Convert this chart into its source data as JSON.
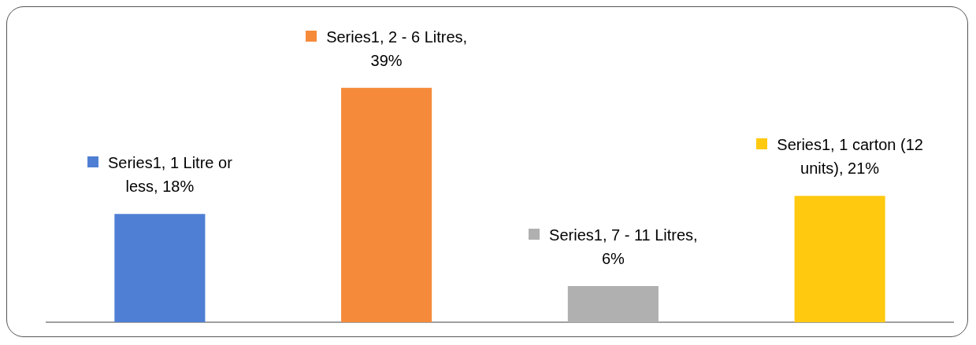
{
  "chart_data": {
    "type": "bar",
    "categories": [
      null,
      null,
      null,
      null
    ],
    "values": [
      18,
      39,
      6,
      21
    ],
    "colors": [
      "#4f7fd4",
      "#f58a3a",
      "#b0b0b0",
      "#ffc90f"
    ],
    "value_labels": [
      "Series1, 1 Litre or less, 18%",
      "Series1, 2 - 6 Litres, 39%",
      "Series1, 7 - 11 Litres, 6%",
      "Series1, 1 carton (12 units), 21%"
    ],
    "grid": false,
    "legend": false
  }
}
